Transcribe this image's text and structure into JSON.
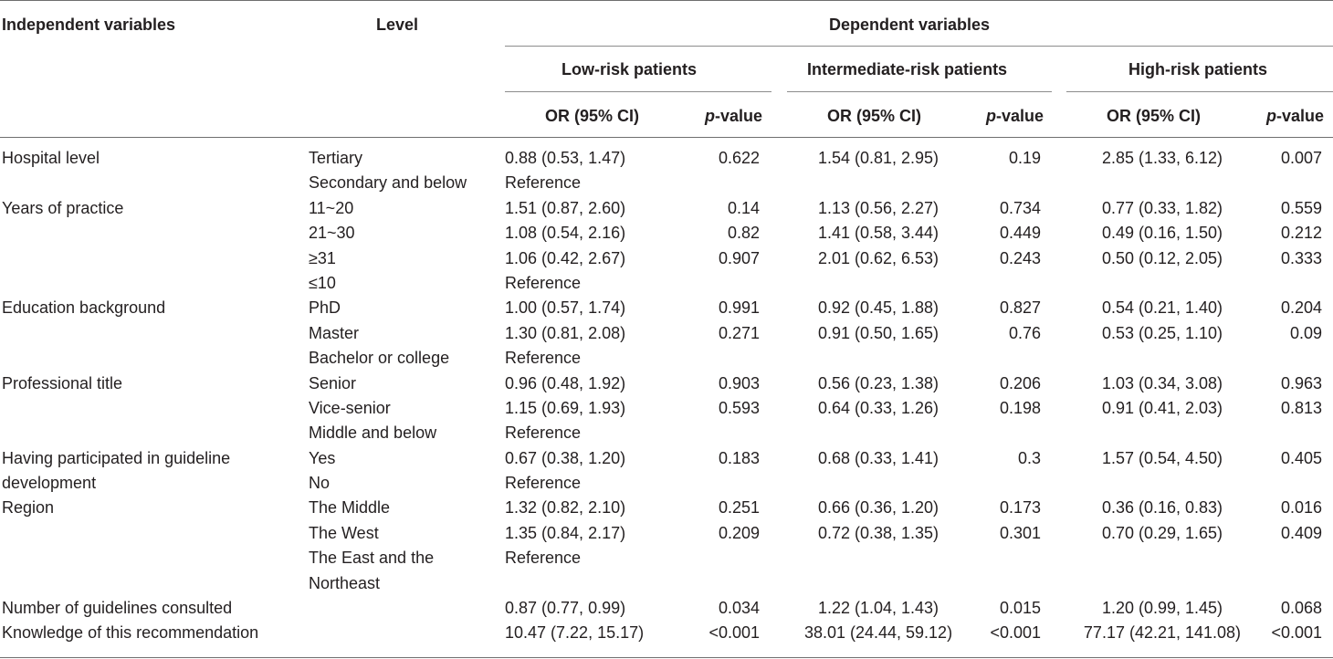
{
  "header": {
    "independent_variables": "Independent variables",
    "level": "Level",
    "dependent_variables": "Dependent variables",
    "groups": [
      "Low-risk patients",
      "Intermediate-risk patients",
      "High-risk patients"
    ],
    "or_label": "OR (95% CI)",
    "p_italic": "p",
    "p_suffix": "-value"
  },
  "rows": [
    {
      "var": "Hospital level",
      "level": "Tertiary",
      "or1": "0.88 (0.53, 1.47)",
      "p1": "0.622",
      "or2": "1.54 (0.81, 2.95)",
      "p2": "0.19",
      "or3": "2.85 (1.33, 6.12)",
      "p3": "0.007"
    },
    {
      "var": "",
      "level": "Secondary and below",
      "or1": "Reference",
      "p1": "",
      "or2": "",
      "p2": "",
      "or3": "",
      "p3": ""
    },
    {
      "var": "Years of practice",
      "level": "11~20",
      "or1": "1.51 (0.87, 2.60)",
      "p1": "0.14",
      "or2": "1.13 (0.56, 2.27)",
      "p2": "0.734",
      "or3": "0.77 (0.33, 1.82)",
      "p3": "0.559"
    },
    {
      "var": "",
      "level": "21~30",
      "or1": "1.08 (0.54, 2.16)",
      "p1": "0.82",
      "or2": "1.41 (0.58, 3.44)",
      "p2": "0.449",
      "or3": "0.49 (0.16, 1.50)",
      "p3": "0.212"
    },
    {
      "var": "",
      "level": "≥31",
      "or1": "1.06 (0.42, 2.67)",
      "p1": "0.907",
      "or2": "2.01 (0.62, 6.53)",
      "p2": "0.243",
      "or3": "0.50 (0.12, 2.05)",
      "p3": "0.333"
    },
    {
      "var": "",
      "level": "≤10",
      "or1": "Reference",
      "p1": "",
      "or2": "",
      "p2": "",
      "or3": "",
      "p3": ""
    },
    {
      "var": "Education background",
      "level": "PhD",
      "or1": "1.00 (0.57, 1.74)",
      "p1": "0.991",
      "or2": "0.92 (0.45, 1.88)",
      "p2": "0.827",
      "or3": "0.54 (0.21, 1.40)",
      "p3": "0.204"
    },
    {
      "var": "",
      "level": "Master",
      "or1": "1.30 (0.81, 2.08)",
      "p1": "0.271",
      "or2": "0.91 (0.50, 1.65)",
      "p2": "0.76",
      "or3": "0.53 (0.25, 1.10)",
      "p3": "0.09"
    },
    {
      "var": "",
      "level": "Bachelor or college",
      "or1": "Reference",
      "p1": "",
      "or2": "",
      "p2": "",
      "or3": "",
      "p3": ""
    },
    {
      "var": "Professional title",
      "level": "Senior",
      "or1": "0.96 (0.48, 1.92)",
      "p1": "0.903",
      "or2": "0.56 (0.23, 1.38)",
      "p2": "0.206",
      "or3": "1.03 (0.34, 3.08)",
      "p3": "0.963"
    },
    {
      "var": "",
      "level": "Vice-senior",
      "or1": "1.15 (0.69, 1.93)",
      "p1": "0.593",
      "or2": "0.64 (0.33, 1.26)",
      "p2": "0.198",
      "or3": "0.91 (0.41, 2.03)",
      "p3": "0.813"
    },
    {
      "var": "",
      "level": "Middle and below",
      "or1": "Reference",
      "p1": "",
      "or2": "",
      "p2": "",
      "or3": "",
      "p3": ""
    },
    {
      "var": "Having participated in guideline",
      "level": "Yes",
      "or1": "0.67 (0.38, 1.20)",
      "p1": "0.183",
      "or2": "0.68 (0.33, 1.41)",
      "p2": "0.3",
      "or3": "1.57 (0.54, 4.50)",
      "p3": "0.405"
    },
    {
      "var": "development",
      "level": "No",
      "or1": "Reference",
      "p1": "",
      "or2": "",
      "p2": "",
      "or3": "",
      "p3": ""
    },
    {
      "var": "Region",
      "level": "The Middle",
      "or1": "1.32 (0.82, 2.10)",
      "p1": "0.251",
      "or2": "0.66 (0.36, 1.20)",
      "p2": "0.173",
      "or3": "0.36 (0.16, 0.83)",
      "p3": "0.016"
    },
    {
      "var": "",
      "level": "The West",
      "or1": "1.35 (0.84, 2.17)",
      "p1": "0.209",
      "or2": "0.72 (0.38, 1.35)",
      "p2": "0.301",
      "or3": "0.70 (0.29, 1.65)",
      "p3": "0.409"
    },
    {
      "var": "",
      "level": "The East and the Northeast",
      "or1": "Reference",
      "p1": "",
      "or2": "",
      "p2": "",
      "or3": "",
      "p3": "",
      "tall": true
    },
    {
      "var": "Number of guidelines consulted",
      "level": "",
      "or1": "0.87 (0.77, 0.99)",
      "p1": "0.034",
      "or2": "1.22 (1.04, 1.43)",
      "p2": "0.015",
      "or3": "1.20 (0.99, 1.45)",
      "p3": "0.068"
    },
    {
      "var": "Knowledge of this recommendation",
      "level": "",
      "or1": "10.47 (7.22, 15.17)",
      "p1": "<0.001",
      "or2": "38.01 (24.44, 59.12)",
      "p2": "<0.001",
      "or3": "77.17 (42.21, 141.08)",
      "p3": "<0.001"
    }
  ]
}
